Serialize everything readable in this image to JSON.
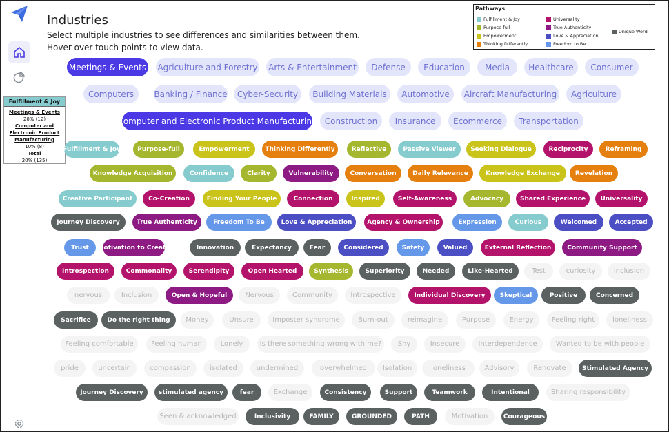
{
  "header": {
    "title": "Industries",
    "instruction_1": "Select multiple industries to see differences and similarities between them.",
    "instruction_2": "Hover over touch points to view data."
  },
  "legend": {
    "title": "Pathways",
    "items": [
      {
        "label": "Fulfillment & Joy",
        "color": "#86cccf"
      },
      {
        "label": "Purpose-full",
        "color": "#a4b72e"
      },
      {
        "label": "Empowerment",
        "color": "#c9c31a"
      },
      {
        "label": "Thinking Differently",
        "color": "#e57f0e"
      },
      {
        "label": "Universality",
        "color": "#b4136c"
      },
      {
        "label": "True Authenticity",
        "color": "#8e1b83"
      },
      {
        "label": "Love & Appreciation",
        "color": "#4c4ec4"
      },
      {
        "label": "Freedom to Be",
        "color": "#6698ea"
      },
      {
        "label": "Unique Word",
        "color": "#5a6160"
      }
    ]
  },
  "tooltip": {
    "heading": "Fulfillment & Joy",
    "rows": [
      {
        "label": "Meetings & Events",
        "value": "20% (12)"
      },
      {
        "label": "Computer and Electronic Product Manufacturing",
        "value": "10% (8)"
      },
      {
        "label": "Total",
        "value": "20% (135)"
      }
    ]
  },
  "industries": [
    {
      "label": "Meetings & Events",
      "selected": true
    },
    {
      "label": "Agriculture and Forestry",
      "selected": false
    },
    {
      "label": "Arts & Entertainment",
      "selected": false
    },
    {
      "label": "Defense",
      "selected": false
    },
    {
      "label": "Education",
      "selected": false
    },
    {
      "label": "Media",
      "selected": false
    },
    {
      "label": "Healthcare",
      "selected": false
    },
    {
      "label": "Consumer",
      "selected": false
    },
    {
      "label": "Computers",
      "selected": false
    },
    {
      "label": "Banking / Finance",
      "selected": false
    },
    {
      "label": "Cyber-Security",
      "selected": false
    },
    {
      "label": "Building Materials",
      "selected": false
    },
    {
      "label": "Automotive",
      "selected": false
    },
    {
      "label": "Aircraft Manufacturing",
      "selected": false
    },
    {
      "label": "Agriculture",
      "selected": false
    },
    {
      "label": "Computer and Electronic Product Manufacturing",
      "selected": true
    },
    {
      "label": "Construction",
      "selected": false
    },
    {
      "label": "Insurance",
      "selected": false
    },
    {
      "label": "Ecommerce",
      "selected": false
    },
    {
      "label": "Transportation",
      "selected": false
    }
  ],
  "touchpoints": [
    {
      "label": "Fulfillment & Joy",
      "color": "#86cccf"
    },
    {
      "label": "Purpose-full",
      "color": "#a4b72e"
    },
    {
      "label": "Empowerment",
      "color": "#c9c31a"
    },
    {
      "label": "Thinking Differently",
      "color": "#e57f0e"
    },
    {
      "label": "Reflective",
      "color": "#a4b72e"
    },
    {
      "label": "Passive Viewer",
      "color": "#86cccf"
    },
    {
      "label": "Seeking Dialogue",
      "color": "#c9c31a"
    },
    {
      "label": "Reciprocity",
      "color": "#b4136c"
    },
    {
      "label": "Reframing",
      "color": "#e57f0e"
    },
    {
      "label": "Knowledge Acquisition",
      "color": "#a4b72e"
    },
    {
      "label": "Confidence",
      "color": "#86cccf"
    },
    {
      "label": "Clarity",
      "color": "#a4b72e"
    },
    {
      "label": "Vulnerability",
      "color": "#8e1b83"
    },
    {
      "label": "Conversation",
      "color": "#e57f0e"
    },
    {
      "label": "Daily Relevance",
      "color": "#e57f0e"
    },
    {
      "label": "Knowledge Exchange",
      "color": "#c9c31a"
    },
    {
      "label": "Revelation",
      "color": "#e57f0e"
    },
    {
      "label": "Creative Participant",
      "color": "#86cccf"
    },
    {
      "label": "Co-Creation",
      "color": "#b4136c"
    },
    {
      "label": "Finding Your People",
      "color": "#c9c31a"
    },
    {
      "label": "Connection",
      "color": "#b4136c"
    },
    {
      "label": "Inspired",
      "color": "#c9c31a"
    },
    {
      "label": "Self-Awareness",
      "color": "#b4136c"
    },
    {
      "label": "Advocacy",
      "color": "#a4b72e"
    },
    {
      "label": "Shared Experience",
      "color": "#b4136c"
    },
    {
      "label": "Universality",
      "color": "#b4136c"
    },
    {
      "label": "Journey Discovery",
      "color": "#5a6160"
    },
    {
      "label": "True Authenticity",
      "color": "#8e1b83"
    },
    {
      "label": "Freedom To Be",
      "color": "#6698ea"
    },
    {
      "label": "Love & Appreciation",
      "color": "#4c4ec4"
    },
    {
      "label": "Agency & Ownership",
      "color": "#b4136c"
    },
    {
      "label": "Expression",
      "color": "#6698ea"
    },
    {
      "label": "Curious",
      "color": "#86cccf"
    },
    {
      "label": "Welcomed",
      "color": "#4c4ec4"
    },
    {
      "label": "Accepted",
      "color": "#4c4ec4"
    },
    {
      "label": "Trust",
      "color": "#6698ea"
    },
    {
      "label": "Motivation to Create",
      "color": "#8e1b83"
    },
    {
      "label": "Innovation",
      "color": "#5a6160"
    },
    {
      "label": "Expectancy",
      "color": "#5a6160"
    },
    {
      "label": "Fear",
      "color": "#5a6160"
    },
    {
      "label": "Considered",
      "color": "#4c4ec4"
    },
    {
      "label": "Safety",
      "color": "#6698ea"
    },
    {
      "label": "Valued",
      "color": "#4c4ec4"
    },
    {
      "label": "External Reflection",
      "color": "#b4136c"
    },
    {
      "label": "Community Support",
      "color": "#8e1b83"
    },
    {
      "label": "Introspection",
      "color": "#b4136c"
    },
    {
      "label": "Commonality",
      "color": "#b4136c"
    },
    {
      "label": "Serendipity",
      "color": "#b4136c"
    },
    {
      "label": "Open Hearted",
      "color": "#b4136c"
    },
    {
      "label": "Synthesis",
      "color": "#a4b72e"
    },
    {
      "label": "Superiority",
      "color": "#5a6160"
    },
    {
      "label": "Needed",
      "color": "#5a6160"
    },
    {
      "label": "Like-Hearted",
      "color": "#5a6160"
    },
    {
      "label": "Test",
      "color": ""
    },
    {
      "label": "curiosity",
      "color": ""
    },
    {
      "label": "inclusion",
      "color": ""
    },
    {
      "label": "nervous",
      "color": ""
    },
    {
      "label": "Inclusion",
      "color": ""
    },
    {
      "label": "Open & Hopeful",
      "color": "#8e1b83"
    },
    {
      "label": "Nervous",
      "color": ""
    },
    {
      "label": "Community",
      "color": ""
    },
    {
      "label": "Introspective",
      "color": ""
    },
    {
      "label": "Individual Discovery",
      "color": "#b4136c"
    },
    {
      "label": "Skeptical",
      "color": "#6698ea"
    },
    {
      "label": "Positive",
      "color": "#5a6160"
    },
    {
      "label": "Concerned",
      "color": "#5a6160"
    },
    {
      "label": "Sacrifice",
      "color": "#5a6160"
    },
    {
      "label": "Do the right thing",
      "color": "#5a6160"
    },
    {
      "label": "Money",
      "color": ""
    },
    {
      "label": "Unsure",
      "color": ""
    },
    {
      "label": "Imposter syndrome",
      "color": ""
    },
    {
      "label": "Burn-out",
      "color": ""
    },
    {
      "label": "reimagine",
      "color": ""
    },
    {
      "label": "Purpose",
      "color": ""
    },
    {
      "label": "Energy",
      "color": ""
    },
    {
      "label": "Feeling right",
      "color": ""
    },
    {
      "label": "loneliness",
      "color": ""
    },
    {
      "label": "Feeling comfortable",
      "color": ""
    },
    {
      "label": "Feeling human",
      "color": ""
    },
    {
      "label": "Lonely",
      "color": ""
    },
    {
      "label": "Is there something wrong with me?",
      "color": ""
    },
    {
      "label": "Shy",
      "color": ""
    },
    {
      "label": "Insecure",
      "color": ""
    },
    {
      "label": "Interdependence",
      "color": ""
    },
    {
      "label": "Wanted to be with people",
      "color": ""
    },
    {
      "label": "pride",
      "color": ""
    },
    {
      "label": "uncertain",
      "color": ""
    },
    {
      "label": "compassion",
      "color": ""
    },
    {
      "label": "isolated",
      "color": ""
    },
    {
      "label": "undermined",
      "color": ""
    },
    {
      "label": "overwhelmed",
      "color": ""
    },
    {
      "label": "Isolation",
      "color": ""
    },
    {
      "label": "loneliness",
      "color": ""
    },
    {
      "label": "Advisory",
      "color": ""
    },
    {
      "label": "Renovate",
      "color": ""
    },
    {
      "label": "Stimulated Agency",
      "color": "#5a6160"
    },
    {
      "label": "Journey Discovery",
      "color": "#5a6160"
    },
    {
      "label": "stimulated agency",
      "color": "#5a6160"
    },
    {
      "label": "fear",
      "color": "#5a6160"
    },
    {
      "label": "Exchange",
      "color": ""
    },
    {
      "label": "Consistency",
      "color": "#5a6160"
    },
    {
      "label": "Support",
      "color": "#5a6160"
    },
    {
      "label": "Teamwork",
      "color": "#5a6160"
    },
    {
      "label": "Intentional",
      "color": "#5a6160"
    },
    {
      "label": "Sharing responsibility",
      "color": ""
    },
    {
      "label": "Seen & acknowledged",
      "color": ""
    },
    {
      "label": "Inclusivity",
      "color": "#5a6160"
    },
    {
      "label": "FAMILY",
      "color": "#5a6160"
    },
    {
      "label": "GROUNDED",
      "color": "#5a6160"
    },
    {
      "label": "PATH",
      "color": "#5a6160"
    },
    {
      "label": "Motivation",
      "color": ""
    },
    {
      "label": "Courageous",
      "color": "#5a6160"
    }
  ]
}
